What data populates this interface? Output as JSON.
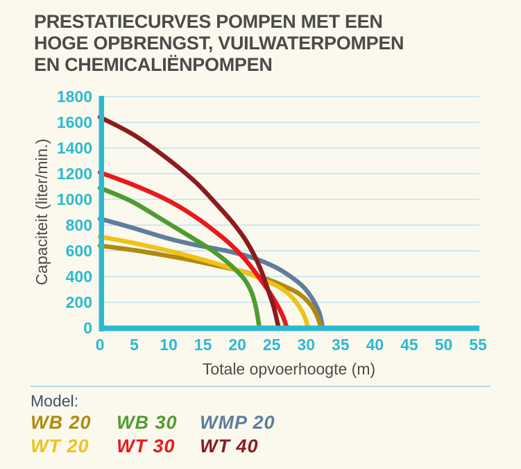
{
  "header": {
    "title_lines": [
      "PRESTATIECURVES POMPEN MET EEN",
      "HOGE OPBRENGST, VUILWATERPOMPEN",
      "EN CHEMICALIËNPOMPEN"
    ]
  },
  "chart_data": {
    "type": "line",
    "xlabel": "Totale opvoerhoogte (m)",
    "ylabel": "Capaciteit (liter/min.)",
    "xlim": [
      0,
      55
    ],
    "ylim": [
      0,
      1800
    ],
    "x_ticks": [
      0,
      5,
      10,
      15,
      20,
      25,
      30,
      35,
      40,
      45,
      50,
      55
    ],
    "y_ticks": [
      0,
      200,
      400,
      600,
      800,
      1000,
      1200,
      1400,
      1600,
      1800
    ],
    "grid": "horizontal",
    "legend_position": "bottom",
    "axis_color": "#2cb9d2",
    "tick_label_color": "#2cb9d2",
    "gridline_color": "#bfe3f0",
    "background_color": "#fbf9ed",
    "series": [
      {
        "name": "WMP 20",
        "color": "#5f7d9e",
        "points": [
          [
            0,
            850
          ],
          [
            5,
            775
          ],
          [
            10,
            695
          ],
          [
            14,
            645
          ],
          [
            18,
            605
          ],
          [
            20,
            580
          ],
          [
            22,
            550
          ],
          [
            24,
            510
          ],
          [
            26,
            460
          ],
          [
            28,
            390
          ],
          [
            29.5,
            325
          ],
          [
            30.5,
            260
          ],
          [
            31.3,
            190
          ],
          [
            32,
            105
          ],
          [
            32.4,
            0
          ]
        ]
      },
      {
        "name": "WB 20",
        "color": "#b1890e",
        "points": [
          [
            0,
            640
          ],
          [
            5,
            605
          ],
          [
            10,
            560
          ],
          [
            14,
            520
          ],
          [
            17,
            485
          ],
          [
            20,
            450
          ],
          [
            22,
            420
          ],
          [
            24,
            385
          ],
          [
            26,
            345
          ],
          [
            28,
            295
          ],
          [
            29,
            265
          ],
          [
            30,
            220
          ],
          [
            31,
            155
          ],
          [
            31.7,
            80
          ],
          [
            32.2,
            0
          ]
        ]
      },
      {
        "name": "WT 20",
        "color": "#eec31c",
        "points": [
          [
            0,
            710
          ],
          [
            5,
            660
          ],
          [
            10,
            600
          ],
          [
            14,
            545
          ],
          [
            17,
            500
          ],
          [
            20,
            450
          ],
          [
            22,
            415
          ],
          [
            24,
            370
          ],
          [
            26,
            320
          ],
          [
            27,
            285
          ],
          [
            28,
            235
          ],
          [
            29,
            165
          ],
          [
            29.8,
            85
          ],
          [
            30.3,
            0
          ]
        ]
      },
      {
        "name": "WB 30",
        "color": "#509b31",
        "points": [
          [
            0,
            1090
          ],
          [
            4.6,
            985
          ],
          [
            9,
            845
          ],
          [
            13,
            715
          ],
          [
            16,
            615
          ],
          [
            18,
            535
          ],
          [
            19.5,
            465
          ],
          [
            21,
            380
          ],
          [
            22,
            285
          ],
          [
            22.7,
            160
          ],
          [
            23.2,
            0
          ]
        ]
      },
      {
        "name": "WT 30",
        "color": "#e8191f",
        "points": [
          [
            0,
            1210
          ],
          [
            5,
            1110
          ],
          [
            10,
            990
          ],
          [
            14,
            860
          ],
          [
            17,
            740
          ],
          [
            19,
            650
          ],
          [
            21,
            540
          ],
          [
            22.5,
            440
          ],
          [
            24,
            330
          ],
          [
            25,
            250
          ],
          [
            26,
            160
          ],
          [
            26.7,
            80
          ],
          [
            27.2,
            0
          ]
        ]
      },
      {
        "name": "WT 40",
        "color": "#8c1b20",
        "points": [
          [
            0,
            1640
          ],
          [
            5,
            1500
          ],
          [
            10,
            1310
          ],
          [
            14,
            1130
          ],
          [
            17,
            960
          ],
          [
            19,
            840
          ],
          [
            21,
            700
          ],
          [
            22.5,
            560
          ],
          [
            23.5,
            440
          ],
          [
            24.5,
            290
          ],
          [
            25.3,
            160
          ],
          [
            26,
            0
          ]
        ]
      }
    ]
  },
  "legend": {
    "label": "Model:",
    "entries": [
      {
        "label": "WB 20",
        "color": "#b1890e"
      },
      {
        "label": "WB 30",
        "color": "#509b31"
      },
      {
        "label": "WMP 20",
        "color": "#5f7d9e"
      },
      {
        "label": "WT 20",
        "color": "#eec31c"
      },
      {
        "label": "WT 30",
        "color": "#e8191f"
      },
      {
        "label": "WT 40",
        "color": "#8c1b20"
      }
    ]
  }
}
